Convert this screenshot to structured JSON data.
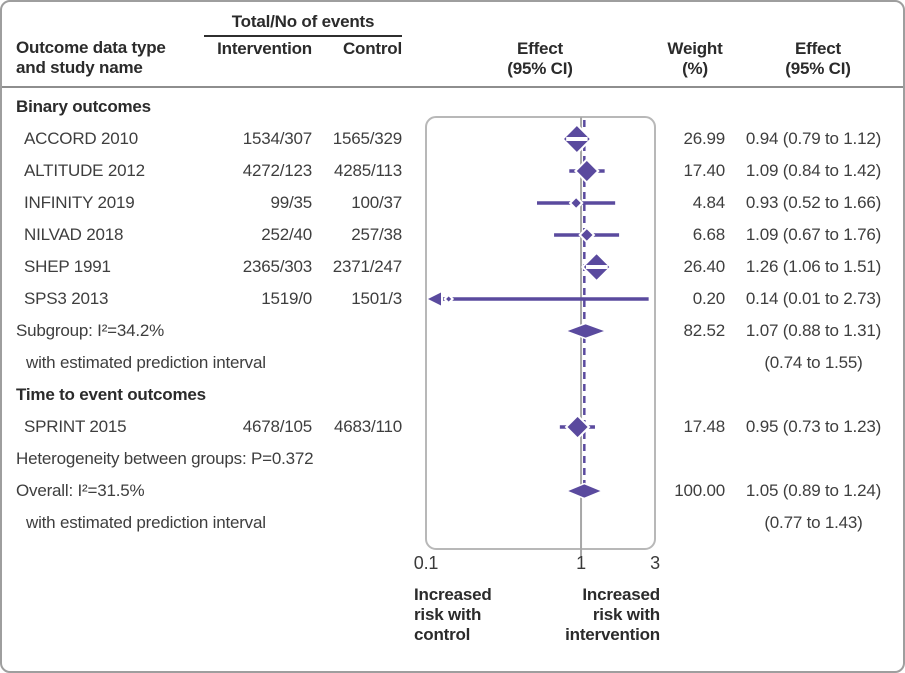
{
  "header": {
    "events_group_label": "Total/No of events",
    "col_study": "Outcome data type\nand study name",
    "col_intervention": "Intervention",
    "col_control": "Control",
    "col_effect_plot": "Effect\n(95% CI)",
    "col_weight": "Weight\n(%)",
    "col_effect_text": "Effect\n(95% CI)"
  },
  "rows": [
    {
      "type": "section",
      "label": "Binary outcomes"
    },
    {
      "type": "study",
      "label": "ACCORD 2010",
      "intervention": "1534/307",
      "control": "1565/329",
      "weight": "26.99",
      "effect": "0.94 (0.79 to 1.12)",
      "plot": {
        "kind": "study",
        "est": 0.94,
        "lo": 0.79,
        "hi": 1.12,
        "w": 26.99
      }
    },
    {
      "type": "study",
      "label": "ALTITUDE 2012",
      "intervention": "4272/123",
      "control": "4285/113",
      "weight": "17.40",
      "effect": "1.09 (0.84 to 1.42)",
      "plot": {
        "kind": "study",
        "est": 1.09,
        "lo": 0.84,
        "hi": 1.42,
        "w": 17.4
      }
    },
    {
      "type": "study",
      "label": "INFINITY 2019",
      "intervention": "99/35",
      "control": "100/37",
      "weight": "4.84",
      "effect": "0.93 (0.52 to 1.66)",
      "plot": {
        "kind": "study",
        "est": 0.93,
        "lo": 0.52,
        "hi": 1.66,
        "w": 4.84
      }
    },
    {
      "type": "study",
      "label": "NILVAD 2018",
      "intervention": "252/40",
      "control": "257/38",
      "weight": "6.68",
      "effect": "1.09 (0.67 to 1.76)",
      "plot": {
        "kind": "study",
        "est": 1.09,
        "lo": 0.67,
        "hi": 1.76,
        "w": 6.68
      }
    },
    {
      "type": "study",
      "label": "SHEP 1991",
      "intervention": "2365/303",
      "control": "2371/247",
      "weight": "26.40",
      "effect": "1.26 (1.06 to 1.51)",
      "plot": {
        "kind": "study",
        "est": 1.26,
        "lo": 1.06,
        "hi": 1.51,
        "w": 26.4
      }
    },
    {
      "type": "study",
      "label": "SPS3 2013",
      "intervention": "1519/0",
      "control": "1501/3",
      "weight": "0.20",
      "effect": "0.14 (0.01 to 2.73)",
      "plot": {
        "kind": "study",
        "est": 0.14,
        "lo": 0.01,
        "hi": 2.73,
        "w": 0.2,
        "lo_offscale": true
      }
    },
    {
      "type": "summary",
      "label": "Subgroup: I²=34.2%",
      "weight": "82.52",
      "effect": "1.07 (0.88 to 1.31)",
      "plot": {
        "kind": "pooled",
        "est": 1.07,
        "lo": 0.88,
        "hi": 1.31
      }
    },
    {
      "type": "note",
      "label": "with estimated prediction interval",
      "effect": "(0.74 to 1.55)"
    },
    {
      "type": "section",
      "label": "Time to event outcomes"
    },
    {
      "type": "study",
      "label": "SPRINT 2015",
      "intervention": "4678/105",
      "control": "4683/110",
      "weight": "17.48",
      "effect": "0.95 (0.73 to 1.23)",
      "plot": {
        "kind": "study",
        "est": 0.95,
        "lo": 0.73,
        "hi": 1.23,
        "w": 17.48
      }
    },
    {
      "type": "note2",
      "label": "Heterogeneity between groups: P=0.372"
    },
    {
      "type": "summary",
      "label": "Overall: I²=31.5%",
      "weight": "100.00",
      "effect": "1.05 (0.89 to 1.24)",
      "plot": {
        "kind": "pooled",
        "est": 1.05,
        "lo": 0.89,
        "hi": 1.24
      }
    },
    {
      "type": "note",
      "label": "with estimated prediction interval",
      "effect": "(0.77 to 1.43)"
    }
  ],
  "axis": {
    "ticks": [
      {
        "label": "0.1",
        "value": 0.1
      },
      {
        "label": "1",
        "value": 1
      },
      {
        "label": "3",
        "value": 3
      }
    ],
    "left_label": "Increased\nrisk with\ncontrol",
    "right_label": "Increased\nrisk with\nintervention"
  },
  "colors": {
    "accent_purple": "#5a4a9e",
    "null_line_gray": "#a7a7a7",
    "plot_box_border": "#b8b8b8",
    "text_dark": "#2b2b2b",
    "text_body": "#3e3e3e"
  },
  "chart_data": {
    "type": "forest",
    "x_scale": "log",
    "x_range": [
      0.1,
      3
    ],
    "x_ticks": [
      0.1,
      1,
      3
    ],
    "null_line_x": 1,
    "summary_line_x": 1.05,
    "xlabel_left": "Increased risk with control",
    "xlabel_right": "Increased risk with intervention",
    "groups": [
      {
        "name": "Binary outcomes",
        "studies": [
          {
            "study": "ACCORD 2010",
            "intervention_total_events": "1534/307",
            "control_total_events": "1565/329",
            "est": 0.94,
            "lo": 0.79,
            "hi": 1.12,
            "weight_pct": 26.99
          },
          {
            "study": "ALTITUDE 2012",
            "intervention_total_events": "4272/123",
            "control_total_events": "4285/113",
            "est": 1.09,
            "lo": 0.84,
            "hi": 1.42,
            "weight_pct": 17.4
          },
          {
            "study": "INFINITY 2019",
            "intervention_total_events": "99/35",
            "control_total_events": "100/37",
            "est": 0.93,
            "lo": 0.52,
            "hi": 1.66,
            "weight_pct": 4.84
          },
          {
            "study": "NILVAD 2018",
            "intervention_total_events": "252/40",
            "control_total_events": "257/38",
            "est": 1.09,
            "lo": 0.67,
            "hi": 1.76,
            "weight_pct": 6.68
          },
          {
            "study": "SHEP 1991",
            "intervention_total_events": "2365/303",
            "control_total_events": "2371/247",
            "est": 1.26,
            "lo": 1.06,
            "hi": 1.51,
            "weight_pct": 26.4
          },
          {
            "study": "SPS3 2013",
            "intervention_total_events": "1519/0",
            "control_total_events": "1501/3",
            "est": 0.14,
            "lo": 0.01,
            "hi": 2.73,
            "weight_pct": 0.2,
            "lo_offscale": true
          }
        ],
        "subgroup": {
          "i2": "34.2%",
          "est": 1.07,
          "lo": 0.88,
          "hi": 1.31,
          "weight_pct": 82.52,
          "prediction_interval": [
            0.74,
            1.55
          ]
        }
      },
      {
        "name": "Time to event outcomes",
        "studies": [
          {
            "study": "SPRINT 2015",
            "intervention_total_events": "4678/105",
            "control_total_events": "4683/110",
            "est": 0.95,
            "lo": 0.73,
            "hi": 1.23,
            "weight_pct": 17.48
          }
        ]
      }
    ],
    "heterogeneity_between_groups": "P=0.372",
    "overall": {
      "i2": "31.5%",
      "est": 1.05,
      "lo": 0.89,
      "hi": 1.24,
      "weight_pct": 100.0,
      "prediction_interval": [
        0.77,
        1.43
      ]
    }
  }
}
